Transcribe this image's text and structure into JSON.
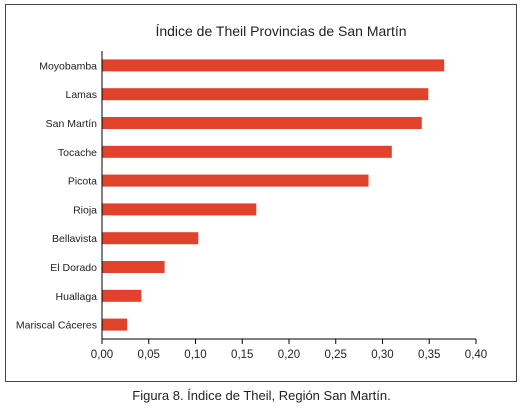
{
  "caption": "Figura 8. Índice de Theil, Región San Martín.",
  "colors": {
    "bar": "#e1422c",
    "axis": "#000000",
    "frame": "#444444"
  },
  "chart_data": {
    "type": "bar",
    "orientation": "horizontal",
    "title": "Índice de Theil Provincias de San Martín",
    "xlabel": "",
    "ylabel": "",
    "xlim": [
      0,
      0.4
    ],
    "xticks": [
      "0,00",
      "0,05",
      "0,10",
      "0,15",
      "0,20",
      "0,25",
      "0,30",
      "0,35",
      "0,40"
    ],
    "grid": false,
    "categories": [
      "Moyobamba",
      "Lamas",
      "San Martín",
      "Tocache",
      "Picota",
      "Rioja",
      "Bellavista",
      "El Dorado",
      "Huallaga",
      "Mariscal Cáceres"
    ],
    "values": [
      0.366,
      0.349,
      0.342,
      0.31,
      0.285,
      0.165,
      0.103,
      0.067,
      0.042,
      0.027
    ]
  }
}
